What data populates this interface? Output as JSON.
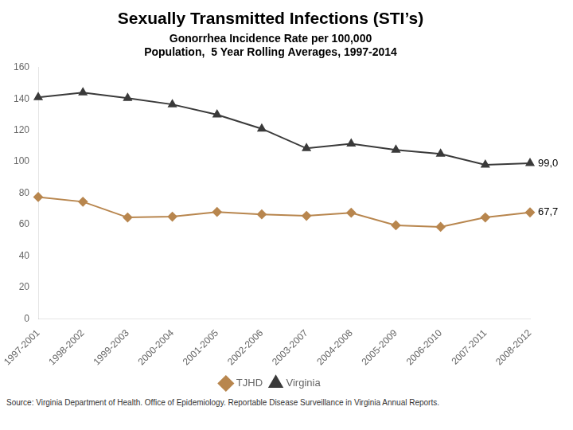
{
  "chart_data": {
    "type": "line",
    "title": "Sexually Transmitted Infections (STI’s)",
    "subtitle": "Gonorrhea Incidence Rate per 100,000\nPopulation,  5 Year Rolling Averages, 1997-2014",
    "source": "Source: Virginia Department of Health. Office of Epidemiology. Reportable Disease Surveillance in Virginia Annual Reports.",
    "categories": [
      "1997-2001",
      "1998-2002",
      "1999-2003",
      "2000-2004",
      "2001-2005",
      "2002-2006",
      "2003-2007",
      "2004-2008",
      "2005-2009",
      "2006-2010",
      "2007-2011",
      "2008-2012"
    ],
    "series": [
      {
        "name": "TJHD",
        "color": "#b8864e",
        "marker": "diamond",
        "values": [
          77.5,
          74.5,
          64.5,
          65.0,
          68.0,
          66.5,
          65.5,
          67.5,
          59.5,
          58.5,
          64.5,
          67.7
        ],
        "value_labels": [
          null,
          null,
          null,
          null,
          null,
          null,
          null,
          null,
          null,
          null,
          null,
          "67,7"
        ]
      },
      {
        "name": "Virginia",
        "color": "#3a3a3a",
        "marker": "triangle",
        "values": [
          141.0,
          144.0,
          140.5,
          136.5,
          130.0,
          121.0,
          108.5,
          111.5,
          107.5,
          105.0,
          98.0,
          99.0
        ],
        "value_labels": [
          null,
          null,
          null,
          null,
          null,
          null,
          null,
          null,
          null,
          null,
          null,
          "99,0"
        ]
      }
    ],
    "ylim": [
      0,
      160
    ],
    "yticks": [
      0,
      20,
      40,
      60,
      80,
      100,
      120,
      140,
      160
    ],
    "grid": false,
    "legend": "bottom"
  }
}
